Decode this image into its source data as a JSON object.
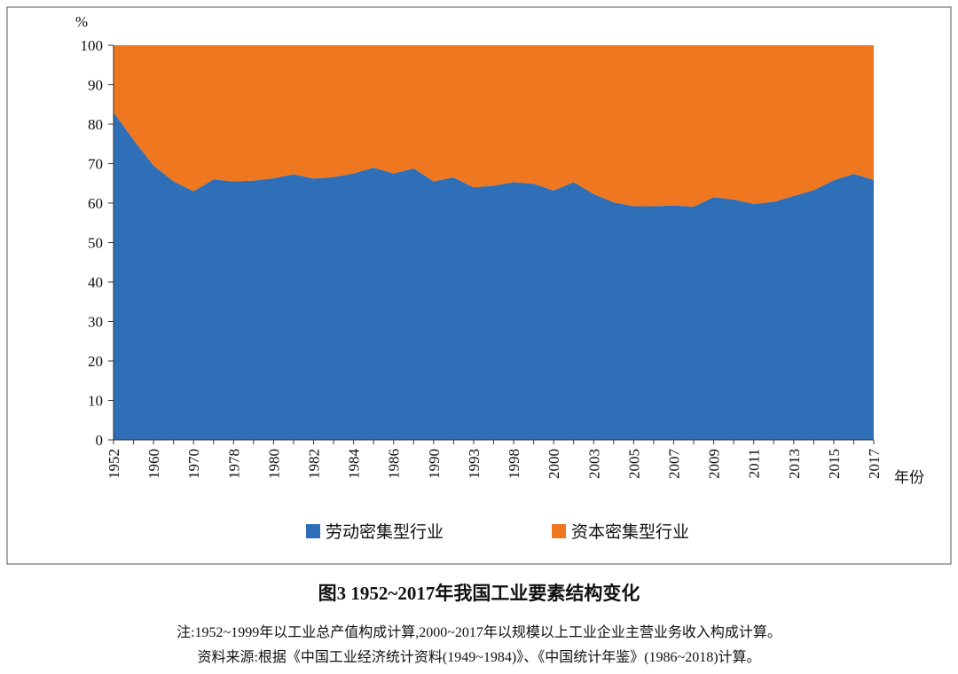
{
  "chart_data": {
    "type": "area",
    "stacked": true,
    "y_label": "%",
    "x_label": "年份",
    "title": "图3   1952~2017年我国工业要素结构变化",
    "notes": [
      "注:1952~1999年以工业总产值构成计算,2000~2017年以规模以上工业企业主营业务收入构成计算。",
      "资料来源:根据《中国工业经济统计资料(1949~1984)》、《中国统计年鉴》(1986~2018)计算。"
    ],
    "categories": [
      "1952",
      null,
      "1960",
      null,
      "1970",
      null,
      "1978",
      null,
      "1980",
      null,
      "1982",
      null,
      "1984",
      null,
      "1986",
      null,
      "1990",
      null,
      "1993",
      null,
      "1998",
      null,
      "2000",
      null,
      "2003",
      null,
      "2005",
      null,
      "2007",
      null,
      "2009",
      null,
      "2011",
      null,
      "2013",
      null,
      "2015",
      null,
      "2017"
    ],
    "series": [
      {
        "name": "劳动密集型行业",
        "color": "#2e6fb7",
        "values": [
          83,
          76,
          69.5,
          65.5,
          63,
          66,
          65.5,
          65.7,
          66.3,
          67.3,
          66.2,
          66.6,
          67.5,
          69,
          67.5,
          68.8,
          65.5,
          66.5,
          64,
          64.4,
          65.3,
          64.9,
          63.2,
          65.3,
          62.3,
          60.2,
          59.2,
          59.2,
          59.4,
          59.1,
          61.5,
          60.9,
          59.8,
          60.3,
          61.8,
          63.3,
          65.8,
          67.4,
          65.9
        ]
      },
      {
        "name": "资本密集型行业",
        "color": "#ee771f",
        "values": [
          17,
          24,
          30.5,
          34.5,
          37,
          34,
          34.5,
          34.3,
          33.7,
          32.7,
          33.8,
          33.4,
          32.5,
          31,
          32.5,
          31.2,
          34.5,
          33.5,
          36,
          35.6,
          34.7,
          35.1,
          36.8,
          34.7,
          37.7,
          39.8,
          40.8,
          40.8,
          40.6,
          40.9,
          38.5,
          39.1,
          40.2,
          39.7,
          38.2,
          36.7,
          34.2,
          32.6,
          34.1
        ]
      }
    ],
    "ylim": [
      0,
      100
    ],
    "yticks": [
      0,
      10,
      20,
      30,
      40,
      50,
      60,
      70,
      80,
      90,
      100
    ]
  }
}
